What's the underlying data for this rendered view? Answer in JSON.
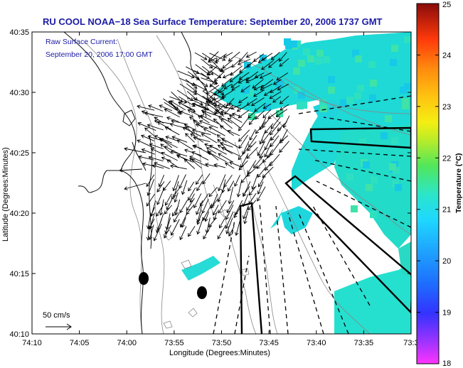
{
  "chart_data": {
    "type": "map-heatmap-vector",
    "title": "RU COOL  NOAA−18  Sea Surface Temperature:  September 20, 2006 1737 GMT",
    "annotation_lines": [
      "Raw Surface Current:",
      "September 20, 2006 17:00 GMT"
    ],
    "xlabel": "Longitude (Degrees:Minutes)",
    "ylabel": "Latitude (Degrees:Minutes)",
    "x_ticks": [
      "74:10",
      "74:05",
      "74:00",
      "73:55",
      "73:50",
      "73:45",
      "73:40",
      "73:35",
      "73:3"
    ],
    "y_ticks": [
      "40:35",
      "40:30",
      "40:25",
      "40:20",
      "40:15",
      "40:10"
    ],
    "scale_label": "50 cm/s",
    "colorbar": {
      "label": "Temperature (°C)",
      "range": [
        18,
        25
      ],
      "ticks": [
        "25",
        "24",
        "23",
        "22",
        "21",
        "20",
        "19",
        "18"
      ]
    },
    "sst_dominant_value_c": 20.8,
    "vector_field": "raw surface current vectors (≈50 cm/s scale) over the Lower NY Harbor / Raritan Bay region",
    "grid": false
  }
}
